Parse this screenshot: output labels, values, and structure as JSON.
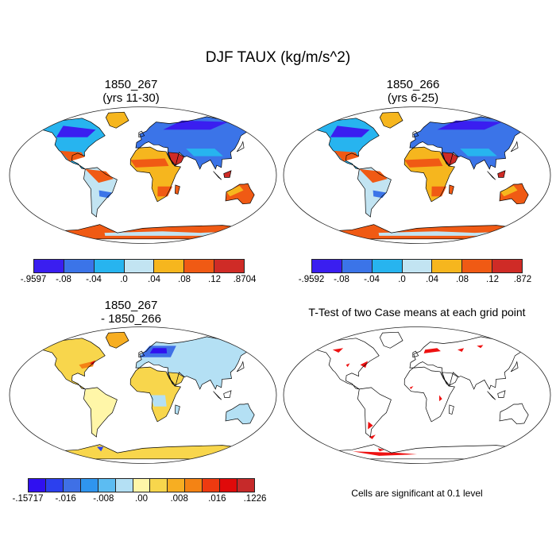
{
  "title": "DJF TAUX (kg/m/s^2)",
  "panels": [
    {
      "title_line1": "1850_267",
      "title_line2": "(yrs 11-30)",
      "type": "field"
    },
    {
      "title_line1": "1850_266",
      "title_line2": "(yrs 6-25)",
      "type": "field"
    },
    {
      "title_line1": "1850_267",
      "title_line2": "- 1850_266",
      "type": "difference"
    },
    {
      "title_line1": "T-Test of two Case means at each grid point",
      "title_line2": "",
      "type": "ttest"
    }
  ],
  "colorbars": {
    "a": {
      "labels": [
        "-.9597",
        "-.08",
        "-.04",
        ".0",
        ".04",
        ".08",
        ".12",
        ".8704"
      ],
      "colors": [
        "#3a1ef0",
        "#3b74e8",
        "#27b4ef",
        "#c2e4f2",
        "#f6b61e",
        "#f05a14",
        "#cf2b26"
      ]
    },
    "b": {
      "labels": [
        "-.9592",
        "-.08",
        "-.04",
        ".0",
        ".04",
        ".08",
        ".12",
        ".872"
      ],
      "colors": [
        "#3a1ef0",
        "#3b74e8",
        "#27b4ef",
        "#c2e4f2",
        "#f6b61e",
        "#f05a14",
        "#cf2b26"
      ]
    },
    "diff": {
      "labels": [
        "-.15717",
        "-.016",
        "-.008",
        ".00",
        ".008",
        ".016",
        ".1226"
      ],
      "colors": [
        "#3010f0",
        "#2c40ee",
        "#3f70e6",
        "#2f95ef",
        "#5cbcf2",
        "#b4e0f4",
        "#fff6a8",
        "#f8d64c",
        "#f7ae22",
        "#f48314",
        "#ee3a10",
        "#e00a0a",
        "#c62a2a"
      ]
    }
  },
  "note": "Cells are significant at 0.1 level",
  "palette": {
    "coast": "#000000",
    "sig_red": "#ee1111"
  }
}
